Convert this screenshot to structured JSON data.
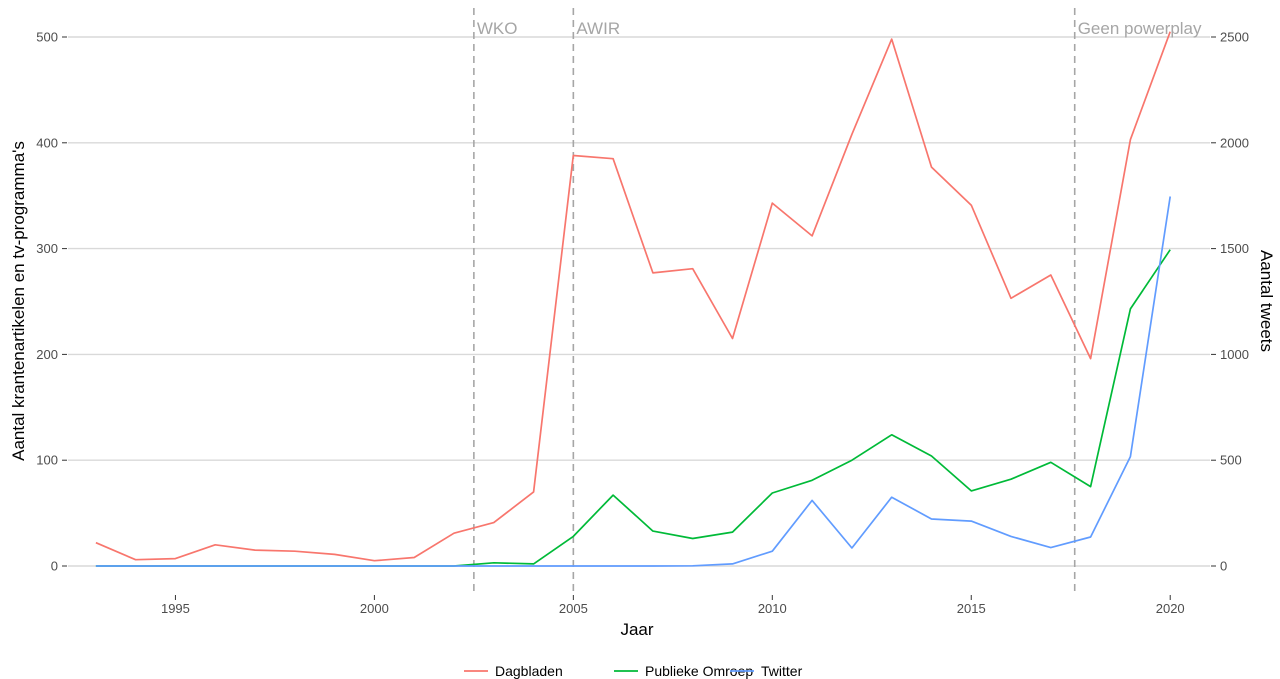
{
  "chart_data": {
    "type": "line",
    "xlabel": "Jaar",
    "ylabel": "Aantal krantenartikelen en tv-programma's",
    "y2label": "Aantal tweets",
    "xlim": [
      1992.3,
      2021.0
    ],
    "ylim": [
      0,
      500
    ],
    "y2lim": [
      0,
      2500
    ],
    "x_ticks": [
      1995,
      2000,
      2005,
      2010,
      2015,
      2020
    ],
    "y_ticks": [
      0,
      100,
      200,
      300,
      400,
      500
    ],
    "y2_ticks": [
      0,
      500,
      1000,
      1500,
      2000,
      2500
    ],
    "grid": "horizontal major",
    "legend_position": "bottom",
    "vlines": [
      {
        "x": 2002.5,
        "label": "WKO"
      },
      {
        "x": 2005.0,
        "label": "AWIR"
      },
      {
        "x": 2017.6,
        "label": "Geen powerplay"
      }
    ],
    "x": [
      1993,
      1994,
      1995,
      1996,
      1997,
      1998,
      1999,
      2000,
      2001,
      2002,
      2003,
      2004,
      2005,
      2006,
      2007,
      2008,
      2009,
      2010,
      2011,
      2012,
      2013,
      2014,
      2015,
      2016,
      2017,
      2018,
      2019,
      2020
    ],
    "series": [
      {
        "name": "Dagbladen",
        "axis": "left",
        "color": "#F8766D",
        "values": [
          22,
          6,
          7,
          20,
          15,
          14,
          11,
          5,
          8,
          31,
          41,
          70,
          388,
          385,
          277,
          281,
          215,
          343,
          312,
          408,
          498,
          377,
          341,
          253,
          275,
          196,
          403,
          505
        ]
      },
      {
        "name": "Publieke Omroep",
        "axis": "left",
        "color": "#00BA38",
        "values": [
          0,
          0,
          0,
          0,
          0,
          0,
          0,
          0,
          0,
          0,
          3,
          2,
          28,
          67,
          33,
          26,
          32,
          69,
          81,
          100,
          124,
          104,
          71,
          82,
          98,
          75,
          243,
          299
        ]
      },
      {
        "name": "Twitter",
        "axis": "right",
        "color": "#619CFF",
        "values": [
          0,
          0,
          0,
          0,
          0,
          0,
          0,
          0,
          0,
          0,
          0,
          0,
          0,
          0,
          0,
          1,
          10,
          70,
          310,
          85,
          325,
          222,
          212,
          140,
          87,
          137,
          517,
          1746
        ]
      }
    ]
  }
}
